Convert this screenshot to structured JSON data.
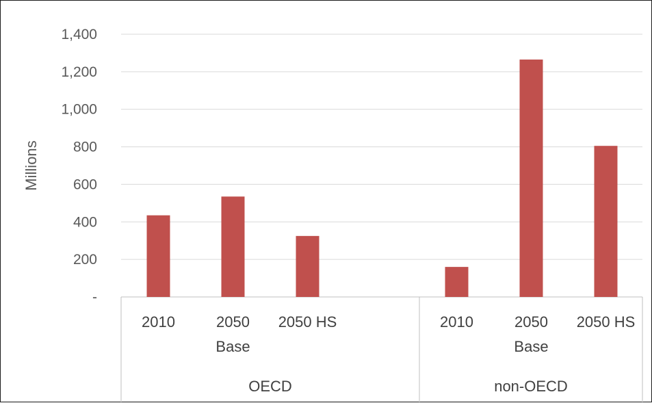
{
  "chart_data": {
    "type": "bar",
    "title": "",
    "ylabel": "Millions",
    "ylim": [
      0,
      1400
    ],
    "yticks": [
      0,
      200,
      400,
      600,
      800,
      1000,
      1200,
      1400
    ],
    "ytick_labels": [
      "-",
      "200",
      "400",
      "600",
      "800",
      "1,000",
      "1,200",
      "1,400"
    ],
    "grid": true,
    "colors": {
      "bar": "#c0504d",
      "grid": "#d9d9d9",
      "axis": "#bfbfbf"
    },
    "groups": [
      {
        "label": "OECD",
        "categories": [
          "2010",
          "2050 Base",
          "2050 HS"
        ],
        "category_lines": [
          [
            "2010"
          ],
          [
            "2050",
            "Base"
          ],
          [
            "2050 HS"
          ]
        ],
        "values": [
          435,
          535,
          325
        ]
      },
      {
        "label": "non-OECD",
        "categories": [
          "2010",
          "2050 Base",
          "2050 HS"
        ],
        "category_lines": [
          [
            "2010"
          ],
          [
            "2050",
            "Base"
          ],
          [
            "2050 HS"
          ]
        ],
        "values": [
          160,
          1265,
          805
        ]
      }
    ]
  }
}
